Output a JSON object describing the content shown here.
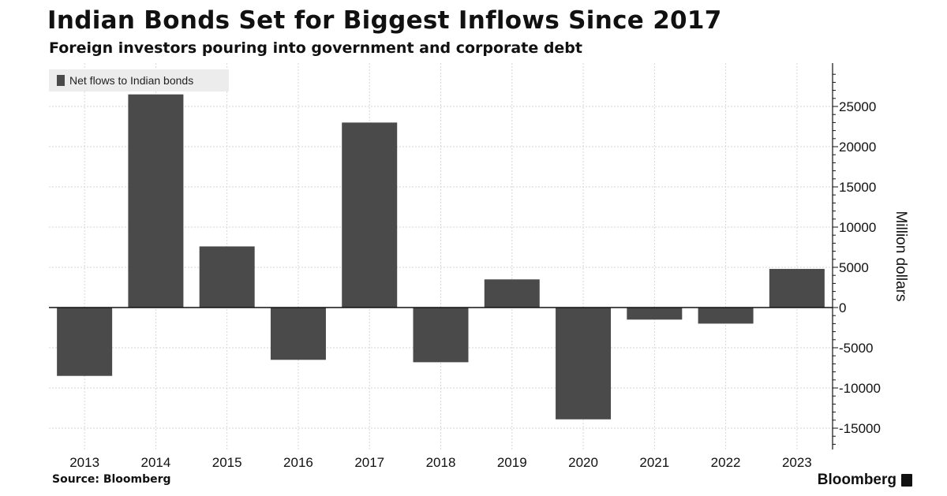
{
  "header": {
    "title": "Indian Bonds Set for Biggest Inflows Since 2017",
    "subtitle": "Foreign investors pouring into government and corporate debt"
  },
  "footer": {
    "source": "Source: Bloomberg",
    "brand": "Bloomberg"
  },
  "colors": {
    "bar": "#4a4a4a",
    "grid": "#d6d6d6",
    "axis": "#111111",
    "legend_bg": "#ececec"
  },
  "chart_data": {
    "type": "bar",
    "title": "Indian Bonds Set for Biggest Inflows Since 2017",
    "subtitle": "Foreign investors pouring into government and corporate debt",
    "categories": [
      "2013",
      "2014",
      "2015",
      "2016",
      "2017",
      "2018",
      "2019",
      "2020",
      "2021",
      "2022",
      "2023"
    ],
    "series": [
      {
        "name": "Net flows to Indian bonds",
        "values": [
          -8500,
          26500,
          7600,
          -6500,
          23000,
          -6800,
          3500,
          -13900,
          -1500,
          -2000,
          4800
        ]
      }
    ],
    "ylabel": "Million dollars",
    "xlabel": "",
    "ylim": [
      -17500,
      30000
    ],
    "yticks": [
      25000,
      20000,
      15000,
      10000,
      5000,
      0,
      -5000,
      -10000,
      -15000
    ],
    "y_axis_side": "right",
    "grid": true,
    "legend": "top-left"
  }
}
